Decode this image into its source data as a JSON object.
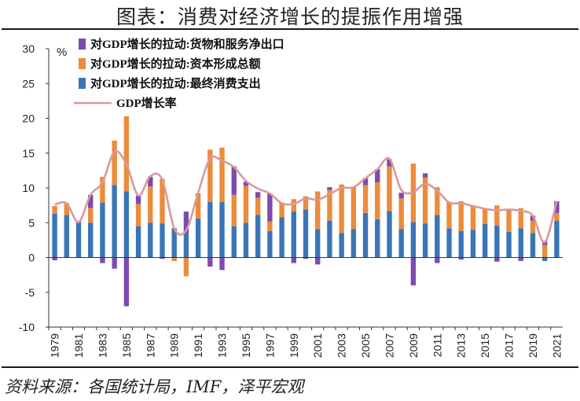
{
  "header": {
    "title": "图表：消费对经济增长的提振作用增强"
  },
  "footer": {
    "source": "资料来源：各国统计局，IMF，泽平宏观"
  },
  "colors": {
    "consumption": "#3a76b7",
    "capital": "#ec8b3a",
    "net_exports": "#7d4bb0",
    "gdp": "#d99a9a"
  },
  "chart_data": {
    "type": "bar",
    "stacked": true,
    "title": "图表：消费对经济增长的提振作用增强",
    "ylabel": "%",
    "ylim": [
      -10,
      30
    ],
    "yticks": [
      -10,
      -5,
      0,
      5,
      10,
      15,
      20,
      25,
      30
    ],
    "categories": [
      "1979",
      "1980",
      "1981",
      "1982",
      "1983",
      "1984",
      "1985",
      "1986",
      "1987",
      "1988",
      "1989",
      "1990",
      "1991",
      "1992",
      "1993",
      "1994",
      "1995",
      "1996",
      "1997",
      "1998",
      "1999",
      "2000",
      "2001",
      "2002",
      "2003",
      "2004",
      "2005",
      "2006",
      "2007",
      "2008",
      "2009",
      "2010",
      "2011",
      "2012",
      "2013",
      "2014",
      "2015",
      "2016",
      "2017",
      "2018",
      "2019",
      "2020",
      "2021"
    ],
    "x_tick_labels": [
      "1979",
      "1981",
      "1983",
      "1985",
      "1987",
      "1989",
      "1991",
      "1993",
      "1995",
      "1997",
      "1999",
      "2001",
      "2003",
      "2005",
      "2007",
      "2009",
      "2011",
      "2013",
      "2015",
      "2017",
      "2019",
      "2021"
    ],
    "legend_position": "top-left",
    "series": [
      {
        "name": "对GDP增长的拉动:最终消费支出",
        "values": [
          6.3,
          6.1,
          5.0,
          5.0,
          7.9,
          10.4,
          9.5,
          4.5,
          5.0,
          4.9,
          3.8,
          3.4,
          5.6,
          8.0,
          8.0,
          4.5,
          5.0,
          6.1,
          3.8,
          5.8,
          6.6,
          6.9,
          4.1,
          5.3,
          3.5,
          4.1,
          6.4,
          5.5,
          6.7,
          4.1,
          5.1,
          4.9,
          6.1,
          4.2,
          3.8,
          4.0,
          4.8,
          4.6,
          3.7,
          4.2,
          3.5,
          -0.5,
          5.3
        ],
        "type": "bar"
      },
      {
        "name": "对GDP增长的拉动:资本形成总额",
        "values": [
          1.1,
          1.7,
          0.0,
          2.1,
          3.7,
          6.4,
          10.8,
          3.2,
          5.2,
          6.4,
          -0.5,
          -2.7,
          3.5,
          7.5,
          7.8,
          4.5,
          5.3,
          2.5,
          1.4,
          2.0,
          1.8,
          1.9,
          5.4,
          4.4,
          7.0,
          6.1,
          4.0,
          5.3,
          6.4,
          4.4,
          8.4,
          6.6,
          4.0,
          3.6,
          4.3,
          3.3,
          2.1,
          2.9,
          3.0,
          2.9,
          1.8,
          1.8,
          1.1
        ],
        "type": "bar"
      },
      {
        "name": "对GDP增长的拉动:货物和服务净出口",
        "values": [
          -0.4,
          0.0,
          0.2,
          1.9,
          -0.8,
          -1.6,
          -7.0,
          1.2,
          1.4,
          -0.2,
          0.4,
          3.2,
          0.1,
          -1.3,
          -1.8,
          4.1,
          0.6,
          0.8,
          4.0,
          0.0,
          -0.8,
          -0.2,
          -1.0,
          0.4,
          0.0,
          0.0,
          1.0,
          1.9,
          1.0,
          0.8,
          -4.0,
          0.6,
          -0.8,
          0.1,
          -0.3,
          0.1,
          0.1,
          -0.6,
          0.2,
          -0.5,
          0.7,
          0.6,
          1.7
        ],
        "type": "bar"
      },
      {
        "name": "GDP增长率",
        "values": [
          7.6,
          7.8,
          5.1,
          9.0,
          10.8,
          15.2,
          13.4,
          8.9,
          11.7,
          11.2,
          4.2,
          3.9,
          9.3,
          14.2,
          13.9,
          13.0,
          11.0,
          9.9,
          9.2,
          7.8,
          7.7,
          8.5,
          8.3,
          9.1,
          10.0,
          10.1,
          11.4,
          12.7,
          14.2,
          9.7,
          9.4,
          10.6,
          9.6,
          7.9,
          7.8,
          7.4,
          7.0,
          6.8,
          6.9,
          6.7,
          6.0,
          2.2,
          8.1
        ],
        "type": "line"
      }
    ]
  }
}
